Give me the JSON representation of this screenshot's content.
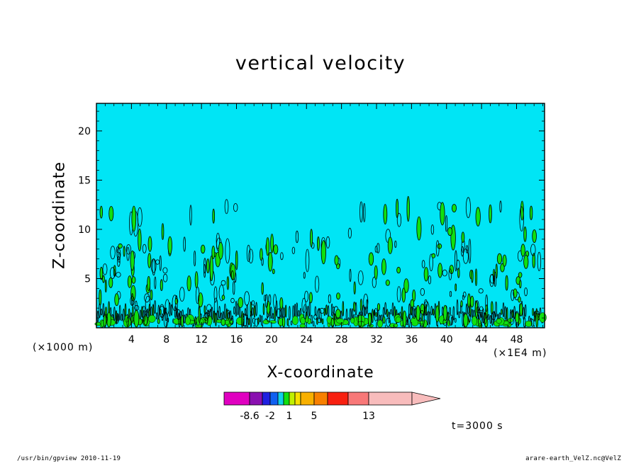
{
  "chart_data": {
    "type": "contour",
    "title": "vertical velocity",
    "xlabel": "X-coordinate",
    "ylabel": "Z-coordinate",
    "x_scale_note": "(×1E4 m)",
    "y_scale_note": "(×1000 m)",
    "xlim": [
      0,
      51.2
    ],
    "ylim": [
      0,
      22.8
    ],
    "x_ticks": [
      4,
      8,
      12,
      16,
      20,
      24,
      28,
      32,
      36,
      40,
      44,
      48
    ],
    "y_ticks": [
      5,
      10,
      15,
      20
    ],
    "background_level_color": "#00e5f5",
    "colorbar": {
      "colors": [
        "#e000c0",
        "#8a10b0",
        "#2020e0",
        "#1060f0",
        "#10d0e8",
        "#10e010",
        "#c0f000",
        "#f8e000",
        "#f8b000",
        "#f88000",
        "#f82010",
        "#f87878",
        "#f8bcbc"
      ],
      "tick_labels": [
        "-8.6",
        "-2",
        "1",
        "5",
        "13"
      ]
    },
    "time_label": "t=3000 s"
  },
  "footer": {
    "left": "/usr/bin/gpview  2010-11-19",
    "right": "arare-earth_VelZ.nc@VelZ"
  }
}
